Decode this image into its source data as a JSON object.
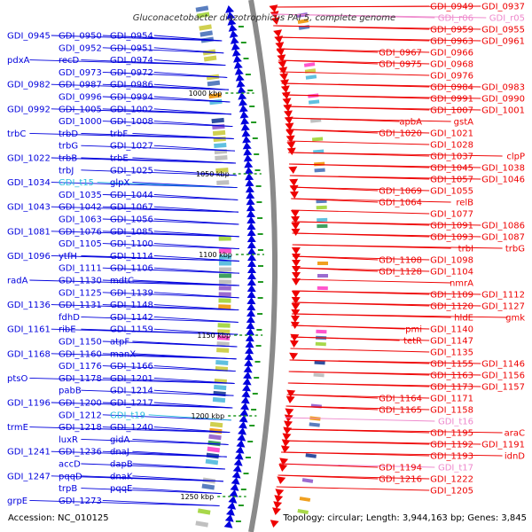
{
  "header": {
    "title": "Gluconacetobacter diazotrophicus PAI 5, complete genome"
  },
  "footer": {
    "accession": "Accession: NC_010125",
    "summary": "Topology: circular; Length: 3,944,163 bp; Genes: 3,845"
  },
  "colors": {
    "forward_gene": "#0000dd",
    "reverse_gene": "#ee0000",
    "forward_rna": "#22bbdd",
    "reverse_rna": "#ee88cc",
    "backbone": "#8a8a8a",
    "tick": "#229922"
  },
  "ticks": [
    {
      "kbp": 1000,
      "label": "1000 kbp"
    },
    {
      "kbp": 1050,
      "label": "1050 kbp"
    },
    {
      "kbp": 1100,
      "label": "1100 kbp"
    },
    {
      "kbp": 1150,
      "label": "1150 kbp"
    },
    {
      "kbp": 1200,
      "label": "1200 kbp"
    },
    {
      "kbp": 1250,
      "label": "1250 kbp"
    }
  ],
  "left_labels": [
    {
      "text": "GDI_0945",
      "kind": "gene"
    },
    {
      "text": "GDI_0950",
      "kind": "gene"
    },
    {
      "text": "GDI_0954",
      "kind": "gene"
    },
    {
      "text": "GDI_0952",
      "kind": "gene"
    },
    {
      "text": "GDI_0951",
      "kind": "gene"
    },
    {
      "text": "pdxA",
      "kind": "gene"
    },
    {
      "text": "recD",
      "kind": "gene"
    },
    {
      "text": "GDI_0974",
      "kind": "gene"
    },
    {
      "text": "GDI_0973",
      "kind": "gene"
    },
    {
      "text": "GDI_0972",
      "kind": "gene"
    },
    {
      "text": "GDI_0982",
      "kind": "gene"
    },
    {
      "text": "GDI_0987",
      "kind": "gene"
    },
    {
      "text": "GDI_0986",
      "kind": "gene"
    },
    {
      "text": "GDI_0996",
      "kind": "gene"
    },
    {
      "text": "GDI_0994",
      "kind": "gene"
    },
    {
      "text": "GDI_0992",
      "kind": "gene"
    },
    {
      "text": "GDI_1005",
      "kind": "gene"
    },
    {
      "text": "GDI_1002",
      "kind": "gene"
    },
    {
      "text": "GDI_1000",
      "kind": "gene"
    },
    {
      "text": "GDI_1008",
      "kind": "gene"
    },
    {
      "text": "trbC",
      "kind": "gene"
    },
    {
      "text": "trbD",
      "kind": "gene"
    },
    {
      "text": "trbF",
      "kind": "gene"
    },
    {
      "text": "trbG",
      "kind": "gene"
    },
    {
      "text": "GDI_1027",
      "kind": "gene"
    },
    {
      "text": "GDI_1022",
      "kind": "gene"
    },
    {
      "text": "trbB",
      "kind": "gene"
    },
    {
      "text": "trbE",
      "kind": "gene"
    },
    {
      "text": "trbJ",
      "kind": "gene"
    },
    {
      "text": "GDI_1025",
      "kind": "gene"
    },
    {
      "text": "GDI_1034",
      "kind": "gene"
    },
    {
      "text": "GDI_t15",
      "kind": "rna"
    },
    {
      "text": "glpX",
      "kind": "gene"
    },
    {
      "text": "GDI_1035",
      "kind": "gene"
    },
    {
      "text": "GDI_1044",
      "kind": "gene"
    },
    {
      "text": "GDI_1043",
      "kind": "gene"
    },
    {
      "text": "GDI_1042",
      "kind": "gene"
    },
    {
      "text": "GDI_1067",
      "kind": "gene"
    },
    {
      "text": "GDI_1063",
      "kind": "gene"
    },
    {
      "text": "GDI_1056",
      "kind": "gene"
    },
    {
      "text": "GDI_1081",
      "kind": "gene"
    },
    {
      "text": "GDI_1076",
      "kind": "gene"
    },
    {
      "text": "GDI_1085",
      "kind": "gene"
    },
    {
      "text": "GDI_1105",
      "kind": "gene"
    },
    {
      "text": "GDI_1100",
      "kind": "gene"
    },
    {
      "text": "GDI_1096",
      "kind": "gene"
    },
    {
      "text": "ytfH",
      "kind": "gene"
    },
    {
      "text": "GDI_1114",
      "kind": "gene"
    },
    {
      "text": "GDI_1111",
      "kind": "gene"
    },
    {
      "text": "GDI_1106",
      "kind": "gene"
    },
    {
      "text": "radA",
      "kind": "gene"
    },
    {
      "text": "GDI_1130",
      "kind": "gene"
    },
    {
      "text": "mdtC",
      "kind": "gene"
    },
    {
      "text": "GDI_1125",
      "kind": "gene"
    },
    {
      "text": "GDI_1139",
      "kind": "gene"
    },
    {
      "text": "GDI_1136",
      "kind": "gene"
    },
    {
      "text": "GDI_1131",
      "kind": "gene"
    },
    {
      "text": "GDI_1148",
      "kind": "gene"
    },
    {
      "text": "fdhD",
      "kind": "gene"
    },
    {
      "text": "GDI_1142",
      "kind": "gene"
    },
    {
      "text": "GDI_1161",
      "kind": "gene"
    },
    {
      "text": "ribE",
      "kind": "gene"
    },
    {
      "text": "GDI_1159",
      "kind": "gene"
    },
    {
      "text": "GDI_1150",
      "kind": "gene"
    },
    {
      "text": "atpF",
      "kind": "gene"
    },
    {
      "text": "GDI_1168",
      "kind": "gene"
    },
    {
      "text": "GDI_1160",
      "kind": "gene"
    },
    {
      "text": "manX",
      "kind": "gene"
    },
    {
      "text": "GDI_1176",
      "kind": "gene"
    },
    {
      "text": "GDI_1166",
      "kind": "gene"
    },
    {
      "text": "ptsO",
      "kind": "gene"
    },
    {
      "text": "GDI_1178",
      "kind": "gene"
    },
    {
      "text": "GDI_1201",
      "kind": "gene"
    },
    {
      "text": "pabB",
      "kind": "gene"
    },
    {
      "text": "GDI_1214",
      "kind": "gene"
    },
    {
      "text": "GDI_1196",
      "kind": "gene"
    },
    {
      "text": "GDI_1200",
      "kind": "gene"
    },
    {
      "text": "GDI_1217",
      "kind": "gene"
    },
    {
      "text": "GDI_1212",
      "kind": "gene"
    },
    {
      "text": "GDI_t19",
      "kind": "rna"
    },
    {
      "text": "trmE",
      "kind": "gene"
    },
    {
      "text": "GDI_1218",
      "kind": "gene"
    },
    {
      "text": "GDI_1240",
      "kind": "gene"
    },
    {
      "text": "luxR",
      "kind": "gene"
    },
    {
      "text": "gidA",
      "kind": "gene"
    },
    {
      "text": "GDI_1241",
      "kind": "gene"
    },
    {
      "text": "GDI_1236",
      "kind": "gene"
    },
    {
      "text": "dnaJ",
      "kind": "gene"
    },
    {
      "text": "accD",
      "kind": "gene"
    },
    {
      "text": "dapB",
      "kind": "gene"
    },
    {
      "text": "GDI_1247",
      "kind": "gene"
    },
    {
      "text": "pqqD",
      "kind": "gene"
    },
    {
      "text": "dnaK",
      "kind": "gene"
    },
    {
      "text": "trpB",
      "kind": "gene"
    },
    {
      "text": "pqqE",
      "kind": "gene"
    },
    {
      "text": "grpE",
      "kind": "gene"
    },
    {
      "text": "GDI_1273",
      "kind": "gene"
    }
  ],
  "right_labels": [
    {
      "text": "GDI_0937",
      "kind": "gene"
    },
    {
      "text": "GDI_0949",
      "kind": "gene"
    },
    {
      "text": "GDI_r05",
      "kind": "rna"
    },
    {
      "text": "GDI_r06",
      "kind": "rna"
    },
    {
      "text": "GDI_0955",
      "kind": "gene"
    },
    {
      "text": "GDI_0959",
      "kind": "gene"
    },
    {
      "text": "GDI_0961",
      "kind": "gene"
    },
    {
      "text": "GDI_0963",
      "kind": "gene"
    },
    {
      "text": "GDI_0966",
      "kind": "gene"
    },
    {
      "text": "GDI_0967",
      "kind": "gene"
    },
    {
      "text": "GDI_0968",
      "kind": "gene"
    },
    {
      "text": "GDI_0975",
      "kind": "gene"
    },
    {
      "text": "GDI_0976",
      "kind": "gene"
    },
    {
      "text": "GDI_0983",
      "kind": "gene"
    },
    {
      "text": "GDI_0984",
      "kind": "gene"
    },
    {
      "text": "GDI_0990",
      "kind": "gene"
    },
    {
      "text": "GDI_0991",
      "kind": "gene"
    },
    {
      "text": "GDI_1001",
      "kind": "gene"
    },
    {
      "text": "GDI_1007",
      "kind": "gene"
    },
    {
      "text": "gstA",
      "kind": "gene"
    },
    {
      "text": "apbA",
      "kind": "gene"
    },
    {
      "text": "GDI_1021",
      "kind": "gene"
    },
    {
      "text": "GDI_1020",
      "kind": "gene"
    },
    {
      "text": "GDI_1028",
      "kind": "gene"
    },
    {
      "text": "clpP",
      "kind": "gene"
    },
    {
      "text": "GDI_1037",
      "kind": "gene"
    },
    {
      "text": "GDI_1038",
      "kind": "gene"
    },
    {
      "text": "GDI_1045",
      "kind": "gene"
    },
    {
      "text": "GDI_1046",
      "kind": "gene"
    },
    {
      "text": "GDI_1057",
      "kind": "gene"
    },
    {
      "text": "GDI_1055",
      "kind": "gene"
    },
    {
      "text": "GDI_1069",
      "kind": "gene"
    },
    {
      "text": "relB",
      "kind": "gene"
    },
    {
      "text": "GDI_1064",
      "kind": "gene"
    },
    {
      "text": "GDI_1077",
      "kind": "gene"
    },
    {
      "text": "GDI_1086",
      "kind": "gene"
    },
    {
      "text": "GDI_1091",
      "kind": "gene"
    },
    {
      "text": "GDI_1087",
      "kind": "gene"
    },
    {
      "text": "GDI_1093",
      "kind": "gene"
    },
    {
      "text": "trbG",
      "kind": "gene"
    },
    {
      "text": "trbI",
      "kind": "gene"
    },
    {
      "text": "GDI_1098",
      "kind": "gene"
    },
    {
      "text": "GDI_1108",
      "kind": "gene"
    },
    {
      "text": "GDI_1104",
      "kind": "gene"
    },
    {
      "text": "GDI_1128",
      "kind": "gene"
    },
    {
      "text": "nmrA",
      "kind": "gene"
    },
    {
      "text": "GDI_1112",
      "kind": "gene"
    },
    {
      "text": "GDI_1109",
      "kind": "gene"
    },
    {
      "text": "GDI_1127",
      "kind": "gene"
    },
    {
      "text": "GDI_1120",
      "kind": "gene"
    },
    {
      "text": "gmk",
      "kind": "gene"
    },
    {
      "text": "hldE",
      "kind": "gene"
    },
    {
      "text": "GDI_1140",
      "kind": "gene"
    },
    {
      "text": "pmi",
      "kind": "gene"
    },
    {
      "text": "GDI_1147",
      "kind": "gene"
    },
    {
      "text": "tetR",
      "kind": "gene"
    },
    {
      "text": "GDI_1135",
      "kind": "gene"
    },
    {
      "text": "GDI_1146",
      "kind": "gene"
    },
    {
      "text": "GDI_1155",
      "kind": "gene"
    },
    {
      "text": "GDI_1156",
      "kind": "gene"
    },
    {
      "text": "GDI_1163",
      "kind": "gene"
    },
    {
      "text": "GDI_1157",
      "kind": "gene"
    },
    {
      "text": "GDI_1173",
      "kind": "gene"
    },
    {
      "text": "GDI_1171",
      "kind": "gene"
    },
    {
      "text": "GDI_1164",
      "kind": "gene"
    },
    {
      "text": "GDI_1158",
      "kind": "gene"
    },
    {
      "text": "GDI_1165",
      "kind": "gene"
    },
    {
      "text": "GDI_t16",
      "kind": "rna"
    },
    {
      "text": "araC",
      "kind": "gene"
    },
    {
      "text": "GDI_1195",
      "kind": "gene"
    },
    {
      "text": "GDI_1191",
      "kind": "gene"
    },
    {
      "text": "GDI_1192",
      "kind": "gene"
    },
    {
      "text": "idnD",
      "kind": "gene"
    },
    {
      "text": "GDI_1193",
      "kind": "gene"
    },
    {
      "text": "GDI_t17",
      "kind": "rna"
    },
    {
      "text": "GDI_1194",
      "kind": "gene"
    },
    {
      "text": "GDI_1222",
      "kind": "gene"
    },
    {
      "text": "GDI_1216",
      "kind": "gene"
    },
    {
      "text": "GDI_1205",
      "kind": "gene"
    }
  ]
}
